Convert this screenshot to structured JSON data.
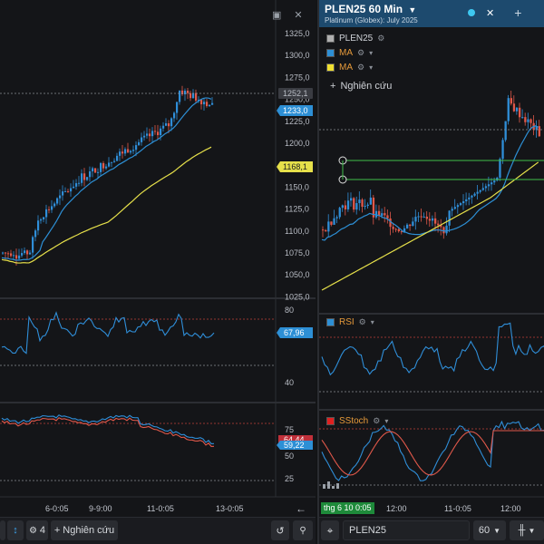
{
  "left": {
    "price_ticks": [
      "1325,0",
      "1300,0",
      "1275,0",
      "1250,0",
      "1225,0",
      "1200,0",
      "1175,0",
      "1150,0",
      "1125,0",
      "1100,0",
      "1075,0",
      "1050,0",
      "1025,0"
    ],
    "last_price": "1252,1",
    "ma_fast_label": "1233,0",
    "ma_slow_label": "1168,1",
    "rsi_ticks": [
      "80",
      "40"
    ],
    "rsi_value": "67,96",
    "stoch_ticks": [
      "75",
      "50",
      "25"
    ],
    "stoch_value_k": "64,44",
    "stoch_value_d": "59,22",
    "date_labels": [
      "6-0:05",
      "9-9:00",
      "11-0:05",
      "13-0:05"
    ],
    "bottom": {
      "indicator_count": "4",
      "research_label": "Nghiên cứu"
    }
  },
  "right": {
    "title": "PLEN25 60 Min",
    "subtitle": "Platinum (Globex): July 2025",
    "legend": [
      {
        "label": "PLEN25",
        "color": "#b0b0b0"
      },
      {
        "label": "MA",
        "color": "#2d8fd5"
      },
      {
        "label": "MA",
        "color": "#f0e030"
      }
    ],
    "research_label": "Nghiên cứu",
    "rsi_label": "RSI",
    "stoch_label": "SStoch",
    "cursor_time": "thg 6 10 0:05",
    "time_labels": [
      "12:00",
      "11-0:05",
      "12:00"
    ],
    "symbol": "PLEN25",
    "interval": "60"
  },
  "colors": {
    "up": "#2f8ed8",
    "down": "#e0584a",
    "ma_fast": "#2d8fd5",
    "ma_slow": "#e6e04a",
    "green_line": "#3fbf4a",
    "title_bg": "#1d4a6e"
  }
}
